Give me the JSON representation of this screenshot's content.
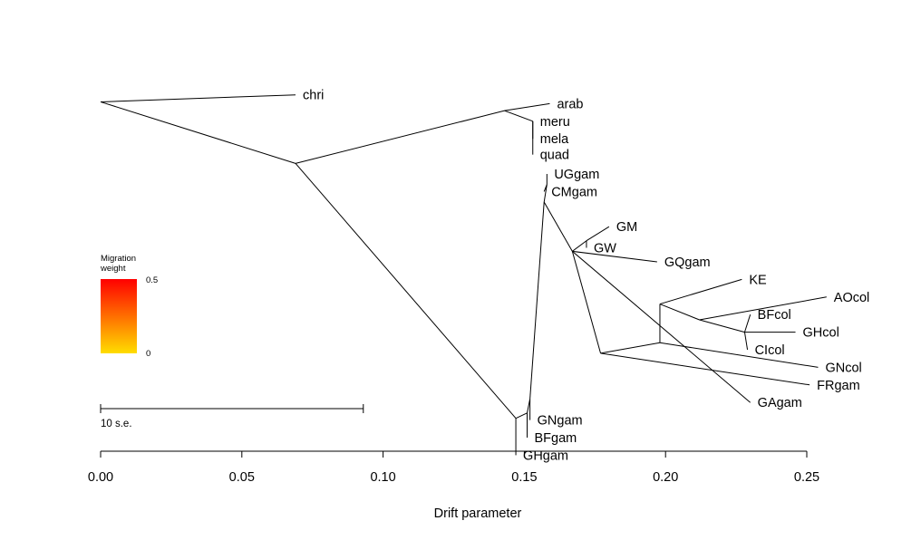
{
  "chart_data": {
    "type": "phylogenetic-tree",
    "xlabel": "Drift parameter",
    "xlim": [
      0.0,
      0.25
    ],
    "x_ticks": [
      0.0,
      0.05,
      0.1,
      0.15,
      0.2,
      0.25
    ],
    "x_tick_labels": [
      "0.00",
      "0.05",
      "0.10",
      "0.15",
      "0.20",
      "0.25"
    ],
    "scale_bar": {
      "label": "10 s.e.",
      "length": 0.093
    },
    "migration_legend": {
      "title_line1": "Migration",
      "title_line2": "weight",
      "max_label": "0.5",
      "min_label": "0",
      "color_max": "#ff0000",
      "color_min": "#ffdd00"
    },
    "nodes": [
      {
        "id": "root",
        "x": 0.0,
        "row": 0.9
      },
      {
        "id": "n_main",
        "x": 0.069,
        "row": 4.4
      },
      {
        "id": "n_ara",
        "x": 0.143,
        "row": 1.4
      },
      {
        "id": "n_mmq",
        "x": 0.153,
        "row": 2.0
      },
      {
        "id": "n_gam_base",
        "x": 0.147,
        "row": 18.9
      },
      {
        "id": "n_g2",
        "x": 0.151,
        "row": 18.6
      },
      {
        "id": "n_g3",
        "x": 0.152,
        "row": 17.8
      },
      {
        "id": "n_gam",
        "x": 0.157,
        "row": 6.6
      },
      {
        "id": "n_ug",
        "x": 0.158,
        "row": 5.6
      },
      {
        "id": "n_wa",
        "x": 0.167,
        "row": 9.4
      },
      {
        "id": "n_gmgw",
        "x": 0.172,
        "row": 8.8
      },
      {
        "id": "n_col_base",
        "x": 0.177,
        "row": 15.2
      },
      {
        "id": "n_col",
        "x": 0.198,
        "row": 14.6
      },
      {
        "id": "n_col2",
        "x": 0.198,
        "row": 12.4
      },
      {
        "id": "n_bf3",
        "x": 0.212,
        "row": 13.3
      },
      {
        "id": "n_bf2",
        "x": 0.228,
        "row": 14.0
      },
      {
        "id": "n_gh",
        "x": 0.229,
        "row": 15.0
      }
    ],
    "tips": [
      {
        "label": "chri",
        "x": 0.069,
        "row": 0.5,
        "parent": "root"
      },
      {
        "label": "arab",
        "x": 0.159,
        "row": 1.0,
        "parent": "n_ara"
      },
      {
        "label": "meru",
        "x": 0.153,
        "row": 2.0,
        "parent": "n_mmq"
      },
      {
        "label": "mela",
        "x": 0.153,
        "row": 3.0,
        "parent": "n_mmq"
      },
      {
        "label": "quad",
        "x": 0.153,
        "row": 3.9,
        "parent": "n_mmq"
      },
      {
        "label": "UGgam",
        "x": 0.158,
        "row": 5.0,
        "parent": "n_ug"
      },
      {
        "label": "CMgam",
        "x": 0.157,
        "row": 6.0,
        "parent": "n_ug"
      },
      {
        "label": "GM",
        "x": 0.18,
        "row": 8.0,
        "parent": "n_gmgw"
      },
      {
        "label": "GW",
        "x": 0.172,
        "row": 9.2,
        "parent": "n_gmgw"
      },
      {
        "label": "GQgam",
        "x": 0.197,
        "row": 10.0,
        "parent": "n_wa"
      },
      {
        "label": "KE",
        "x": 0.227,
        "row": 11.0,
        "parent": "n_col2"
      },
      {
        "label": "AOcol",
        "x": 0.257,
        "row": 12.0,
        "parent": "n_bf3"
      },
      {
        "label": "BFcol",
        "x": 0.23,
        "row": 13.0,
        "parent": "n_bf2"
      },
      {
        "label": "GHcol",
        "x": 0.246,
        "row": 14.0,
        "parent": "n_bf2"
      },
      {
        "label": "CIcol",
        "x": 0.229,
        "row": 15.0,
        "parent": "n_gh"
      },
      {
        "label": "GNcol",
        "x": 0.254,
        "row": 16.0,
        "parent": "n_col"
      },
      {
        "label": "FRgam",
        "x": 0.251,
        "row": 17.0,
        "parent": "n_col_base"
      },
      {
        "label": "GAgam",
        "x": 0.23,
        "row": 18.0,
        "parent": "n_wa"
      },
      {
        "label": "GNgam",
        "x": 0.152,
        "row": 19.0,
        "parent": "n_g3"
      },
      {
        "label": "BFgam",
        "x": 0.151,
        "row": 20.0,
        "parent": "n_g2"
      },
      {
        "label": "GHgam",
        "x": 0.147,
        "row": 21.0,
        "parent": "n_gam_base"
      }
    ],
    "internal_edges": [
      [
        "root",
        "n_main"
      ],
      [
        "n_main",
        "n_ara"
      ],
      [
        "n_ara",
        "n_mmq"
      ],
      [
        "n_main",
        "n_gam_base"
      ],
      [
        "n_gam_base",
        "n_g2"
      ],
      [
        "n_g2",
        "n_g3"
      ],
      [
        "n_g3",
        "n_gam"
      ],
      [
        "n_gam",
        "n_ug"
      ],
      [
        "n_gam",
        "n_wa"
      ],
      [
        "n_wa",
        "n_gmgw"
      ],
      [
        "n_wa",
        "n_col_base"
      ],
      [
        "n_col_base",
        "n_col"
      ],
      [
        "n_col",
        "n_col2"
      ],
      [
        "n_col2",
        "n_bf3"
      ],
      [
        "n_bf3",
        "n_bf2"
      ],
      [
        "n_bf2",
        "n_gh"
      ]
    ],
    "migration_edges": []
  }
}
